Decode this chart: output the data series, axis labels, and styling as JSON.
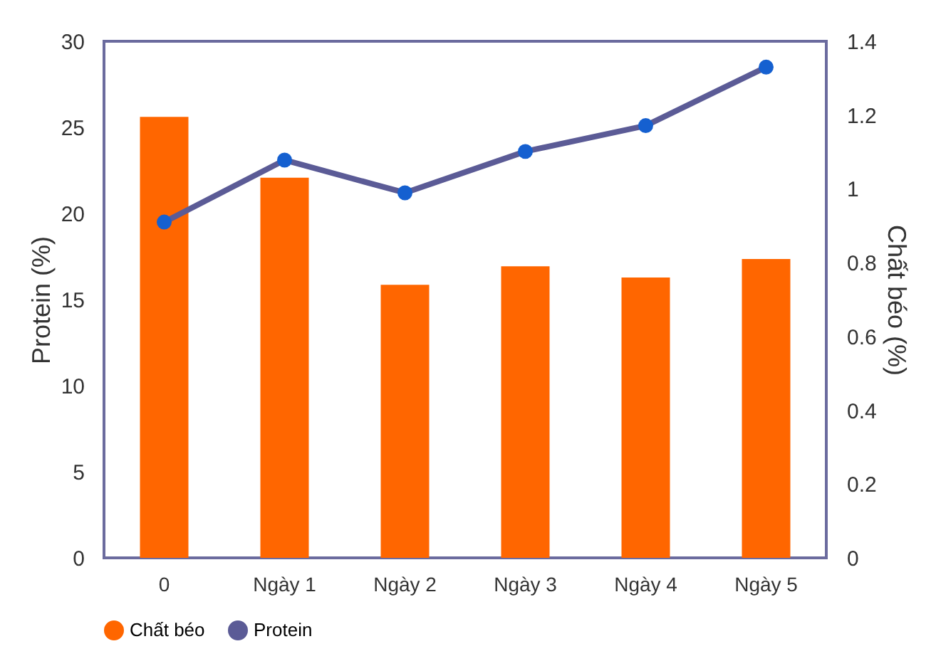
{
  "chart_data": {
    "type": "bar",
    "categories": [
      "0",
      "Ngày 1",
      "Ngày 2",
      "Ngày 3",
      "Ngày 4",
      "Ngày 5"
    ],
    "series": [
      {
        "name": "Chất béo",
        "axis": "y2",
        "color": "#ff6600",
        "values": [
          1.195,
          1.03,
          0.74,
          0.79,
          0.76,
          0.81
        ]
      },
      {
        "name": "Protein",
        "type": "line",
        "axis": "y",
        "color": "#5b5b96",
        "values": [
          19.5,
          23.1,
          21.2,
          23.6,
          25.1,
          28.5
        ]
      }
    ],
    "ylabel": "Protein (%)",
    "y2label": "Chất béo (%)",
    "ylim": [
      0,
      30
    ],
    "yticks": [
      0,
      5,
      10,
      15,
      20,
      25,
      30
    ],
    "y2lim": [
      0,
      1.4
    ],
    "y2ticks": [
      0,
      0.2,
      0.4,
      0.6,
      0.8,
      1,
      1.2,
      1.4
    ],
    "marker": "circle",
    "line_style": "solid",
    "grid": false,
    "legend": "bottom"
  }
}
